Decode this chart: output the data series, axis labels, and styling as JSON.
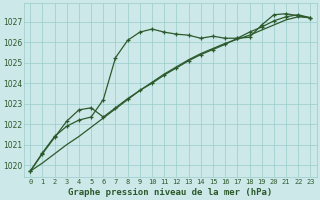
{
  "title": "Graphe pression niveau de la mer (hPa)",
  "bg_color": "#cce8e8",
  "grid_color": "#99cccc",
  "line_color": "#2d5a2d",
  "x_labels": [
    "0",
    "1",
    "2",
    "3",
    "4",
    "5",
    "6",
    "7",
    "8",
    "9",
    "10",
    "11",
    "12",
    "13",
    "14",
    "15",
    "16",
    "17",
    "18",
    "19",
    "20",
    "21",
    "22",
    "23"
  ],
  "ylim": [
    1019.4,
    1027.9
  ],
  "yticks": [
    1020,
    1021,
    1022,
    1023,
    1024,
    1025,
    1026,
    1027
  ],
  "series1_x": [
    0,
    1,
    2,
    3,
    4,
    5,
    6,
    7,
    8,
    9,
    10,
    11,
    12,
    13,
    14,
    15,
    16,
    17,
    18,
    19,
    20,
    21,
    22,
    23
  ],
  "series1_y": [
    1019.7,
    1020.6,
    1021.4,
    1021.9,
    1022.2,
    1022.35,
    1023.2,
    1025.25,
    1026.1,
    1026.5,
    1026.65,
    1026.5,
    1026.4,
    1026.35,
    1026.2,
    1026.3,
    1026.2,
    1026.2,
    1026.25,
    1026.85,
    1027.35,
    1027.4,
    1027.3,
    1027.2
  ],
  "series2_x": [
    0,
    1,
    2,
    3,
    4,
    5,
    6,
    7,
    8,
    9,
    10,
    11,
    12,
    13,
    14,
    15,
    16,
    17,
    18,
    19,
    20,
    21,
    22,
    23
  ],
  "series2_y": [
    1019.7,
    1020.1,
    1020.55,
    1021.0,
    1021.4,
    1021.85,
    1022.3,
    1022.75,
    1023.2,
    1023.65,
    1024.05,
    1024.45,
    1024.8,
    1025.15,
    1025.45,
    1025.7,
    1025.95,
    1026.15,
    1026.35,
    1026.6,
    1026.85,
    1027.1,
    1027.25,
    1027.2
  ],
  "series3_x": [
    0,
    1,
    2,
    3,
    4,
    5,
    6,
    7,
    8,
    9,
    10,
    11,
    12,
    13,
    14,
    15,
    16,
    17,
    18,
    19,
    20,
    21,
    22,
    23
  ],
  "series3_y": [
    1019.7,
    1020.55,
    1021.35,
    1022.15,
    1022.7,
    1022.8,
    1022.35,
    1022.8,
    1023.25,
    1023.65,
    1024.0,
    1024.4,
    1024.75,
    1025.1,
    1025.4,
    1025.65,
    1025.9,
    1026.2,
    1026.5,
    1026.75,
    1027.05,
    1027.25,
    1027.35,
    1027.2
  ]
}
